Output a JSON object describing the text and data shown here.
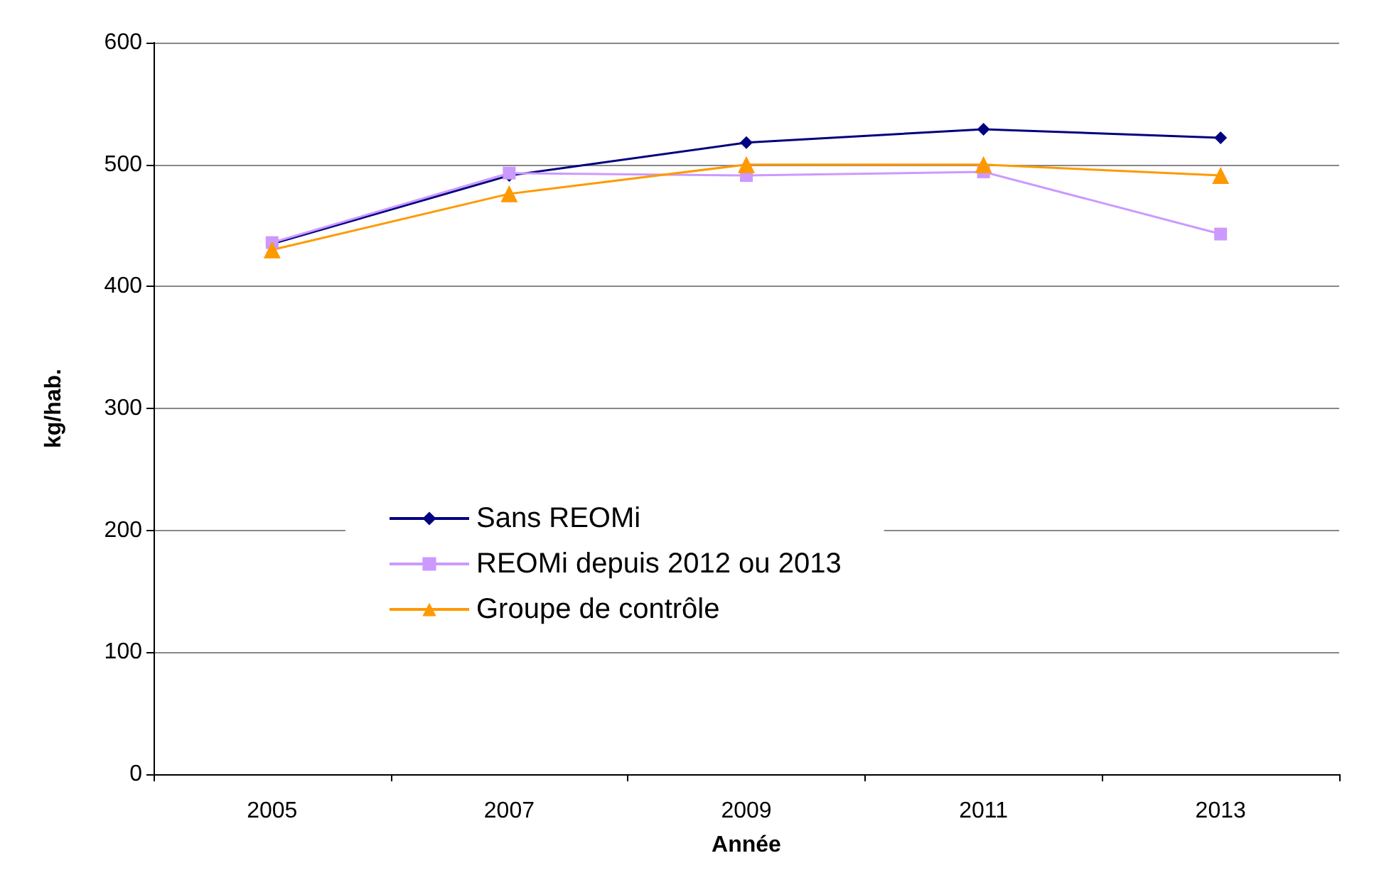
{
  "chart_data": {
    "type": "line",
    "xlabel": "Année",
    "ylabel": "kg/hab.",
    "categories": [
      "2005",
      "2007",
      "2009",
      "2011",
      "2013"
    ],
    "ylim": [
      0,
      600
    ],
    "yticks": [
      0,
      100,
      200,
      300,
      400,
      500,
      600
    ],
    "grid": "y",
    "legend": "left",
    "series": [
      {
        "name": "Sans REOMi",
        "color": "#000080",
        "marker": "diamond",
        "values": [
          435,
          491,
          518,
          529,
          522
        ]
      },
      {
        "name": "REOMi depuis 2012 ou 2013",
        "color": "#cc99ff",
        "marker": "square",
        "values": [
          436,
          493,
          491,
          494,
          443
        ]
      },
      {
        "name": "Groupe de contrôle",
        "color": "#ff9900",
        "marker": "triangle",
        "values": [
          430,
          476,
          500,
          500,
          491
        ]
      }
    ]
  }
}
